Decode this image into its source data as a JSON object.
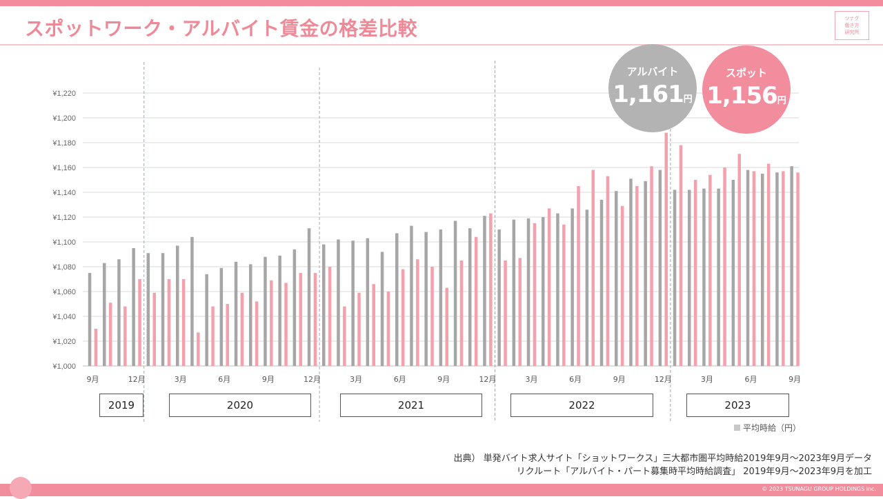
{
  "header": {
    "title": "スポットワーク・アルバイト賃金の格差比較",
    "logo_lines": [
      "ツナグ",
      "働き方",
      "研究所"
    ]
  },
  "colors": {
    "accent": "#f28d9e",
    "arubaito_bar": "#a6a6a6",
    "spot_bar": "#f4a1ad",
    "grid": "#d9d9d9",
    "divider": "#9fa8b4"
  },
  "callouts": {
    "arubaito": {
      "label": "アルバイト",
      "value": "1,161",
      "unit": "円"
    },
    "spot": {
      "label": "スポット",
      "value": "1,156",
      "unit": "円"
    }
  },
  "years": [
    "2019",
    "2020",
    "2021",
    "2022",
    "2023"
  ],
  "legend": {
    "label": "平均時給（円）"
  },
  "source": {
    "line1": "出典） 単発バイト求人サイト「ショットワークス」三大都市圏平均時給2019年9月～2023年9月データ",
    "line2": "リクルート「アルバイト・パート募集時平均時給調査」 2019年9月～2023年9月を加工"
  },
  "footer": {
    "copyright": "© 2023 TSUNAGU GROUP HOLDINGS inc."
  },
  "chart_data": {
    "type": "bar",
    "title": "スポットワーク・アルバイト賃金の格差比較",
    "ylabel": "平均時給（円）",
    "ylim": [
      1000,
      1220
    ],
    "yticks": [
      "¥1,000",
      "¥1,020",
      "¥1,040",
      "¥1,060",
      "¥1,080",
      "¥1,100",
      "¥1,120",
      "¥1,140",
      "¥1,160",
      "¥1,180",
      "¥1,200",
      "¥1,220"
    ],
    "xtick_labels": {
      "0": "9月",
      "3": "12月",
      "6": "3月",
      "9": "6月",
      "12": "9月",
      "15": "12月",
      "18": "3月",
      "21": "6月",
      "24": "9月",
      "27": "12月",
      "30": "3月",
      "33": "6月",
      "36": "9月",
      "39": "12月",
      "42": "3月",
      "45": "6月",
      "48": "9月"
    },
    "categories": [
      "2019-09",
      "2019-10",
      "2019-11",
      "2019-12",
      "2020-01",
      "2020-02",
      "2020-03",
      "2020-04",
      "2020-05",
      "2020-06",
      "2020-07",
      "2020-08",
      "2020-09",
      "2020-10",
      "2020-11",
      "2020-12",
      "2021-01",
      "2021-02",
      "2021-03",
      "2021-04",
      "2021-05",
      "2021-06",
      "2021-07",
      "2021-08",
      "2021-09",
      "2021-10",
      "2021-11",
      "2021-12",
      "2022-01",
      "2022-02",
      "2022-03",
      "2022-04",
      "2022-05",
      "2022-06",
      "2022-07",
      "2022-08",
      "2022-09",
      "2022-10",
      "2022-11",
      "2022-12",
      "2023-01",
      "2023-02",
      "2023-03",
      "2023-04",
      "2023-05",
      "2023-06",
      "2023-07",
      "2023-08",
      "2023-09"
    ],
    "year_breaks_after": [
      3,
      15,
      27,
      39
    ],
    "series": [
      {
        "name": "アルバイト",
        "color": "#a6a6a6",
        "values": [
          1075,
          1083,
          1086,
          1095,
          1091,
          1091,
          1097,
          1104,
          1074,
          1079,
          1084,
          1082,
          1088,
          1089,
          1094,
          1111,
          1098,
          1102,
          1101,
          1103,
          1092,
          1107,
          1113,
          1108,
          1110,
          1117,
          1111,
          1121,
          1110,
          1118,
          1119,
          1120,
          1123,
          1127,
          1126,
          1134,
          1141,
          1151,
          1149,
          1158,
          1142,
          1142,
          1143,
          1143,
          1150,
          1158,
          1155,
          1156,
          1161
        ]
      },
      {
        "name": "スポット",
        "color": "#f4a1ad",
        "values": [
          1030,
          1051,
          1048,
          1070,
          1059,
          1070,
          1070,
          1027,
          1048,
          1050,
          1059,
          1052,
          1069,
          1067,
          1075,
          1075,
          1080,
          1048,
          1059,
          1066,
          1060,
          1078,
          1086,
          1080,
          1063,
          1085,
          1104,
          1123,
          1085,
          1087,
          1115,
          1127,
          1114,
          1145,
          1158,
          1153,
          1129,
          1145,
          1161,
          1188,
          1178,
          1150,
          1154,
          1160,
          1171,
          1157,
          1163,
          1157,
          1156
        ]
      }
    ]
  }
}
